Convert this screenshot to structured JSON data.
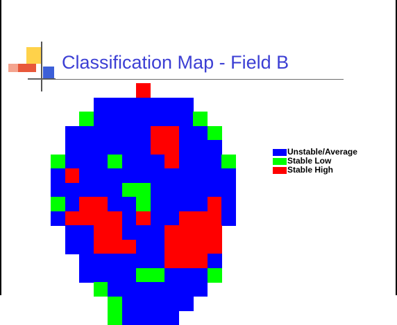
{
  "slide": {
    "title": "Classification Map - Field B"
  },
  "palette": {
    "blue": "#0000ff",
    "green": "#00ff00",
    "red": "#ff0000",
    "title_color": "#3c3fd4",
    "deco_yellow": "#ffd24a",
    "deco_red": "#e8583a",
    "deco_blue": "#3c5fd8"
  },
  "legend": [
    {
      "key": "B",
      "label": "Unstable/Average",
      "color": "#0000ff"
    },
    {
      "key": "G",
      "label": "Stable Low",
      "color": "#00ff00"
    },
    {
      "key": "R",
      "label": "Stable High",
      "color": "#ff0000"
    }
  ],
  "classification_grid": [
    "......R......",
    "...BBBBBBB...",
    "..GBBBBBBBG..",
    ".BBBBBBRRBBG.",
    ".BBBBBBRRBBB.",
    "GBBBGBBBRBBBG",
    "BRBBBBBBBBBBB",
    "BBBBBGGBBBBBB",
    "GBRRBBGBBBBRB",
    "BRRRRBRBBRRRB",
    ".BBRRBBBRRRR.",
    ".BBRRRBBRRRR.",
    "..BBBBBBRRRB.",
    "..BBBBGGBBBG.",
    "...GBBBBBBB..",
    "....GBBBBB...",
    "....GBBBB...."
  ]
}
